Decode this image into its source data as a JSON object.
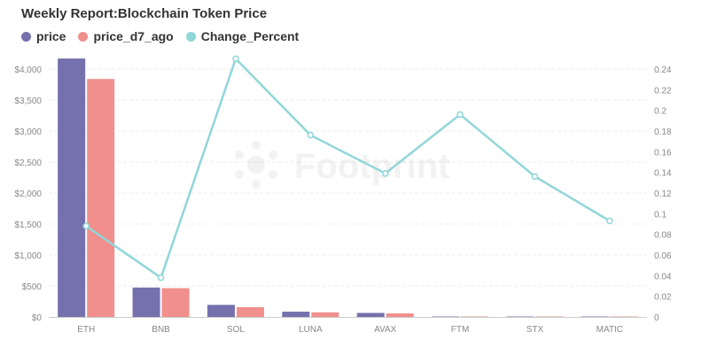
{
  "chart_data": {
    "type": "bar",
    "title": "Weekly Report:Blockchain Token Price",
    "categories": [
      "ETH",
      "BNB",
      "SOL",
      "LUNA",
      "AVAX",
      "FTM",
      "STX",
      "MATIC"
    ],
    "series": [
      {
        "name": "price",
        "type": "bar",
        "axis": "left",
        "color": "#7471ad",
        "values": [
          4170,
          475,
          195,
          85,
          65,
          3,
          2,
          2
        ]
      },
      {
        "name": "price_d7_ago",
        "type": "bar",
        "axis": "left",
        "color": "#f08f8c",
        "values": [
          3840,
          465,
          158,
          75,
          58,
          2.5,
          1.7,
          1.8
        ]
      },
      {
        "name": "Change_Percent",
        "type": "line",
        "axis": "right",
        "color": "#91d6d9",
        "x_categories": [
          "ETH",
          "BNB",
          "SOL",
          "LUNA",
          "AVAX",
          "FTM",
          "STX",
          "MATIC"
        ],
        "values": [
          0.088,
          0.038,
          0.25,
          0.176,
          0.139,
          0.196,
          0.136,
          0.093
        ]
      }
    ],
    "y_left": {
      "min": 0,
      "max": 4000,
      "ticks": [
        "$0",
        "$500",
        "$1,000",
        "$1,500",
        "$2,000",
        "$2,500",
        "$3,000",
        "$3,500",
        "$4,000"
      ]
    },
    "y_right": {
      "min": 0,
      "max": 0.24,
      "ticks": [
        "0",
        "0.02",
        "0.04",
        "0.06",
        "0.08",
        "0.1",
        "0.12",
        "0.14",
        "0.16",
        "0.18",
        "0.2",
        "0.22",
        "0.24"
      ]
    },
    "grid": true,
    "legend_position": "top-left",
    "watermark": "Footprint"
  }
}
